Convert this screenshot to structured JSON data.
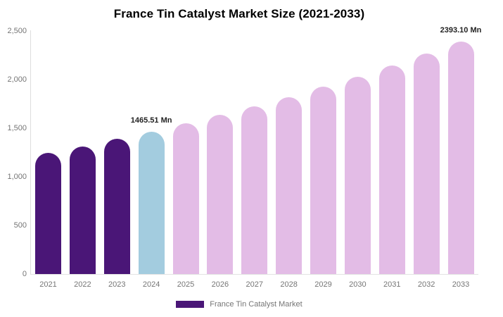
{
  "chart_data": {
    "type": "bar",
    "title": "France Tin Catalyst Market Size (2021-2033)",
    "categories": [
      "2021",
      "2022",
      "2023",
      "2024",
      "2025",
      "2026",
      "2027",
      "2028",
      "2029",
      "2030",
      "2031",
      "2032",
      "2033"
    ],
    "values": [
      1244.5,
      1314.2,
      1387.8,
      1465.51,
      1547.6,
      1634.3,
      1725.8,
      1822.4,
      1924.5,
      2032.2,
      2146.0,
      2266.2,
      2393.1
    ],
    "value_unit": "Mn",
    "point_labels": {
      "2024": "1465.51 Mn",
      "2033": "2393.10 Mn"
    },
    "bar_colors": [
      "#4A1677",
      "#4A1677",
      "#4A1677",
      "#A3CCDF",
      "#E3BCE6",
      "#E3BCE6",
      "#E3BCE6",
      "#E3BCE6",
      "#E3BCE6",
      "#E3BCE6",
      "#E3BCE6",
      "#E3BCE6",
      "#E3BCE6"
    ],
    "ylim": [
      0,
      2500
    ],
    "yticks": [
      {
        "value": 0,
        "label": "0"
      },
      {
        "value": 500,
        "label": "500"
      },
      {
        "value": 1000,
        "label": "1,000"
      },
      {
        "value": 1500,
        "label": "1,500"
      },
      {
        "value": 2000,
        "label": "2,000"
      },
      {
        "value": 2500,
        "label": "2,500"
      }
    ],
    "grid": false,
    "legend_position": "bottom"
  },
  "legend": {
    "items": [
      {
        "label": "France Tin Catalyst Market",
        "color": "#4A1677"
      }
    ]
  },
  "colors": {
    "historical_bar": "#4A1677",
    "base_year_bar": "#A3CCDF",
    "forecast_bar": "#E3BCE6",
    "axis_line": "#DDDDDD",
    "tick_label": "#757575",
    "value_label": "#222222",
    "title_text": "#000000",
    "background": "#FFFFFF"
  }
}
